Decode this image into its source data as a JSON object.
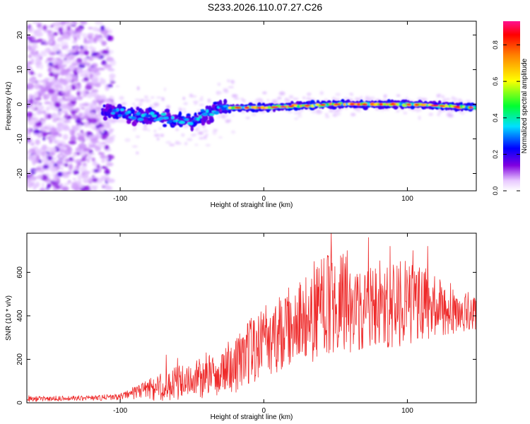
{
  "header": {
    "title": "S233.2026.110.07.27.C26"
  },
  "chart_data": [
    {
      "type": "heatmap",
      "title": "S233.2026.110.07.27.C26",
      "xlabel": "Height of straight line (km)",
      "ylabel": "Frequency (Hz)",
      "xlim": [
        -165,
        148
      ],
      "ylim": [
        -25,
        24
      ],
      "x_ticks": [
        -100,
        0,
        100
      ],
      "y_ticks": [
        -20,
        -10,
        0,
        10,
        20
      ],
      "x_tick_labels": [
        "-100",
        "0",
        "100"
      ],
      "y_tick_labels": [
        "-20",
        "-10",
        "0",
        "10",
        "20"
      ],
      "colorbar": {
        "label": "Normalized spectral amplitude",
        "range": [
          0.0,
          0.93
        ],
        "ticks": [
          0.0,
          0.2,
          0.4,
          0.6,
          0.8
        ],
        "tick_labels": [
          "0.0",
          "0.2",
          "0.4",
          "0.6",
          "0.8"
        ]
      },
      "ridge": {
        "x": [
          -110,
          -90,
          -70,
          -50,
          -30,
          -20,
          0,
          50,
          100,
          148
        ],
        "freq": [
          -2,
          -3,
          -4,
          -5,
          -1,
          -1,
          -1,
          0,
          0,
          -1
        ]
      }
    },
    {
      "type": "line",
      "xlabel": "Height of straight line (km)",
      "ylabel": "SNR (10 * v/v)",
      "xlim": [
        -165,
        148
      ],
      "ylim": [
        0,
        780
      ],
      "x_ticks": [
        -100,
        0,
        100
      ],
      "y_ticks": [
        0,
        200,
        400,
        600
      ],
      "x_tick_labels": [
        "-100",
        "0",
        "100"
      ],
      "y_tick_labels": [
        "0",
        "200",
        "400",
        "600"
      ],
      "series": [
        {
          "name": "SNR",
          "color": "#ee2a2a",
          "x": [
            -165,
            -140,
            -120,
            -100,
            -90,
            -80,
            -70,
            -60,
            -50,
            -40,
            -30,
            -20,
            -10,
            0,
            10,
            20,
            30,
            40,
            50,
            60,
            70,
            80,
            90,
            100,
            110,
            120,
            130,
            140,
            148
          ],
          "values": [
            20,
            20,
            22,
            28,
            45,
            60,
            75,
            90,
            100,
            120,
            150,
            170,
            230,
            290,
            320,
            360,
            380,
            430,
            470,
            460,
            420,
            450,
            440,
            470,
            460,
            440,
            430,
            420,
            410
          ],
          "noise": [
            15,
            12,
            12,
            15,
            30,
            50,
            70,
            80,
            90,
            100,
            110,
            130,
            150,
            170,
            180,
            190,
            200,
            230,
            240,
            230,
            200,
            210,
            200,
            200,
            180,
            150,
            120,
            100,
            90
          ],
          "peaks": [
            {
              "x": -68,
              "y": 220
            },
            {
              "x": -60,
              "y": 205
            },
            {
              "x": -40,
              "y": 230
            },
            {
              "x": 35,
              "y": 650
            },
            {
              "x": 47,
              "y": 785
            },
            {
              "x": 58,
              "y": 700
            },
            {
              "x": 73,
              "y": 760
            },
            {
              "x": 88,
              "y": 720
            },
            {
              "x": 104,
              "y": 700
            },
            {
              "x": 114,
              "y": 720
            }
          ]
        }
      ]
    }
  ]
}
